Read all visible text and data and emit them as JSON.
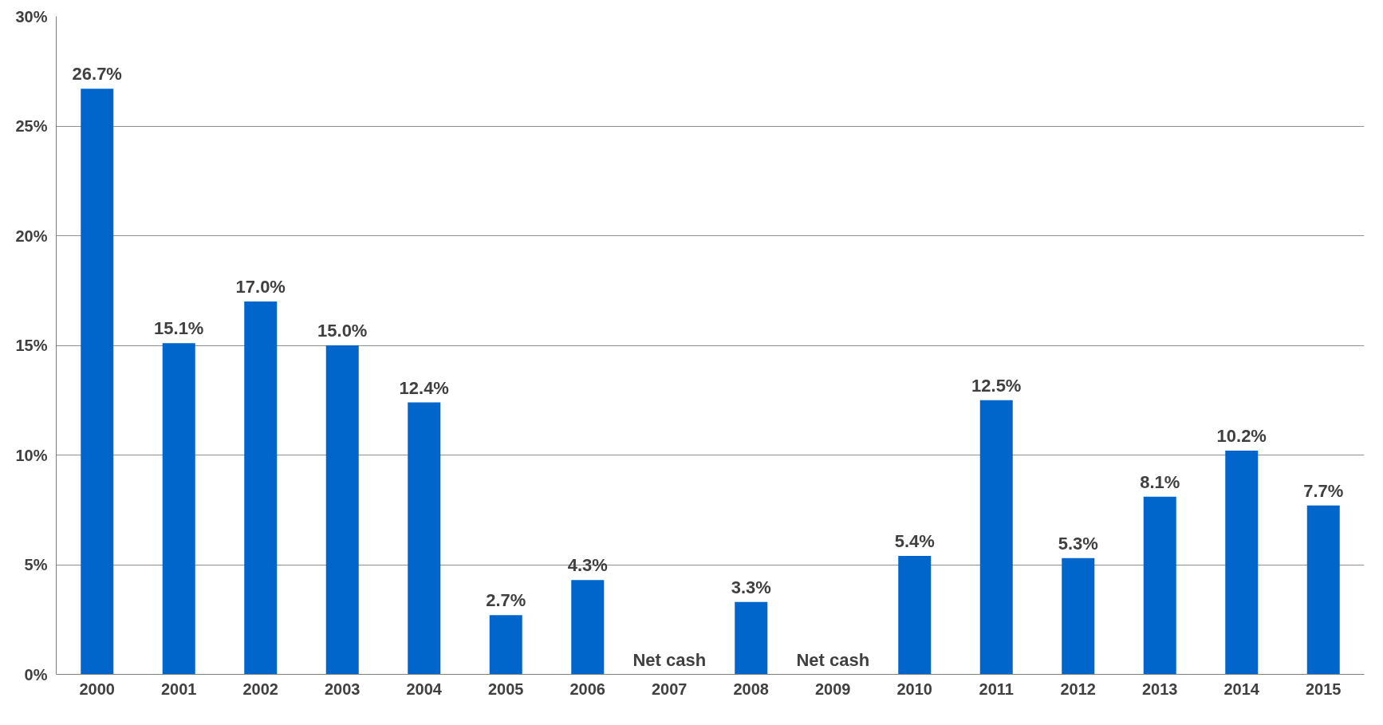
{
  "chart_data": {
    "type": "bar",
    "categories": [
      "2000",
      "2001",
      "2002",
      "2003",
      "2004",
      "2005",
      "2006",
      "2007",
      "2008",
      "2009",
      "2010",
      "2011",
      "2012",
      "2013",
      "2014",
      "2015"
    ],
    "values": [
      26.7,
      15.1,
      17.0,
      15.0,
      12.4,
      2.7,
      4.3,
      null,
      3.3,
      null,
      5.4,
      12.5,
      5.3,
      8.1,
      10.2,
      7.7
    ],
    "value_labels": [
      "26.7%",
      "15.1%",
      "17.0%",
      "15.0%",
      "12.4%",
      "2.7%",
      "4.3%",
      "Net cash",
      "3.3%",
      "Net cash",
      "5.4%",
      "12.5%",
      "5.3%",
      "8.1%",
      "10.2%",
      "7.7%"
    ],
    "color": "#0066cc",
    "ylim": [
      0,
      30
    ],
    "yticks": [
      {
        "value": 0,
        "label": "0%"
      },
      {
        "value": 5,
        "label": "5%"
      },
      {
        "value": 10,
        "label": "10%"
      },
      {
        "value": 15,
        "label": "15%"
      },
      {
        "value": 20,
        "label": "20%"
      },
      {
        "value": 25,
        "label": "25%"
      },
      {
        "value": 30,
        "label": "30%"
      }
    ],
    "grid": "y"
  }
}
